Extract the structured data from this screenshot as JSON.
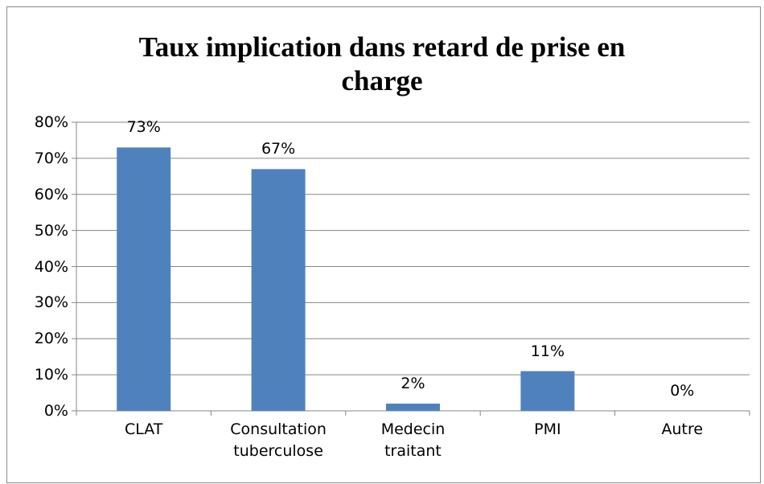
{
  "chart_data": {
    "type": "bar",
    "title": "Taux implication dans retard de prise en charge",
    "categories": [
      "CLAT",
      "Consultation tuberculose",
      "Medecin traitant",
      "PMI",
      "Autre"
    ],
    "values": [
      73,
      67,
      2,
      11,
      0
    ],
    "value_labels": [
      "73%",
      "67%",
      "2%",
      "11%",
      "0%"
    ],
    "color": "#4f81bd",
    "ylim": [
      0,
      80
    ],
    "yticks": [
      {
        "value": 0,
        "label": "0%"
      },
      {
        "value": 10,
        "label": "10%"
      },
      {
        "value": 20,
        "label": "20%"
      },
      {
        "value": 30,
        "label": "30%"
      },
      {
        "value": 40,
        "label": "40%"
      },
      {
        "value": 50,
        "label": "50%"
      },
      {
        "value": 60,
        "label": "60%"
      },
      {
        "value": 70,
        "label": "70%"
      },
      {
        "value": 80,
        "label": "80%"
      }
    ],
    "grid": true
  }
}
